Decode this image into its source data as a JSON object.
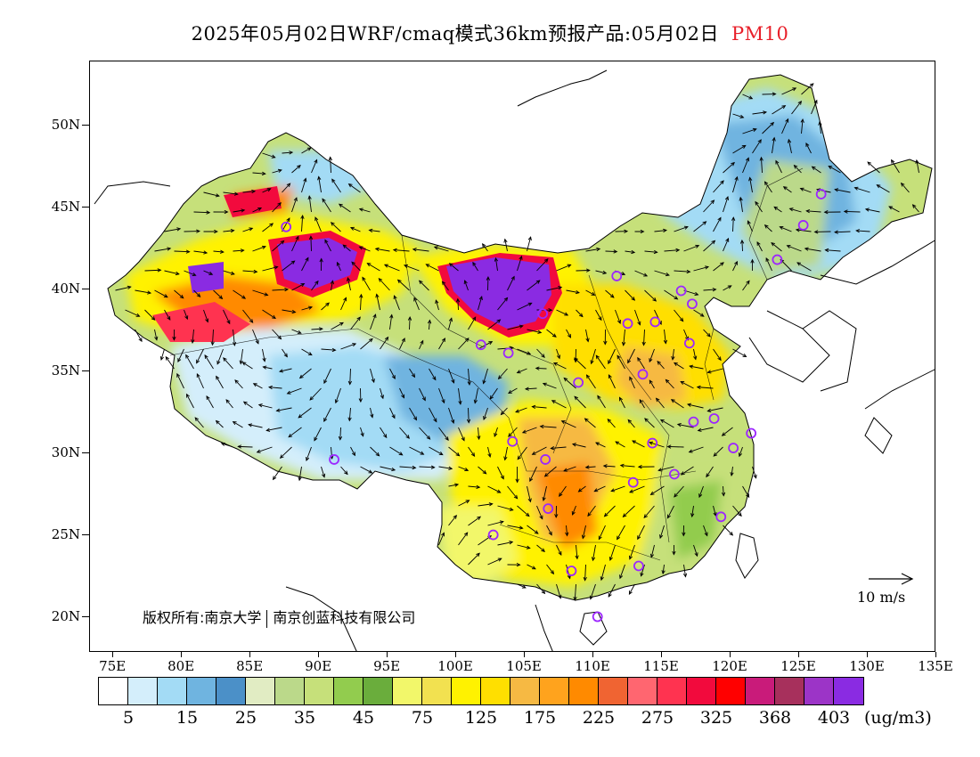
{
  "title": {
    "main": "2025年05月02日WRF/cmaq模式36km预报产品:05月02日",
    "pollutant": "PM10"
  },
  "axes": {
    "lat_labels": [
      "50N",
      "45N",
      "40N",
      "35N",
      "30N",
      "25N",
      "20N"
    ],
    "lon_labels": [
      "75E",
      "80E",
      "85E",
      "90E",
      "95E",
      "100E",
      "105E",
      "110E",
      "115E",
      "120E",
      "125E",
      "130E",
      "135E"
    ],
    "lat_values": [
      50,
      45,
      40,
      35,
      30,
      25,
      20
    ],
    "lon_values": [
      75,
      80,
      85,
      90,
      95,
      100,
      105,
      110,
      115,
      120,
      125,
      130,
      135
    ],
    "lon_range": [
      73.3,
      135
    ],
    "lat_range": [
      17.8,
      53.9
    ]
  },
  "copyright": {
    "prefix": "版权所有:南京大学",
    "company": "南京创蓝科技有限公司"
  },
  "wind_reference": {
    "label": "10 m/s",
    "arrow_icon": "right-arrow-icon"
  },
  "colorbar": {
    "colors": [
      "#ffffff",
      "#d4eefb",
      "#a3dbf5",
      "#6fb4e0",
      "#4b90c8",
      "#e1ecc3",
      "#bbd98a",
      "#c6e07a",
      "#92cc4e",
      "#6aad3c",
      "#f2f76a",
      "#f2e150",
      "#fff200",
      "#ffdf00",
      "#f6b943",
      "#ffa31d",
      "#ff8a00",
      "#f06432",
      "#ff6670",
      "#ff3350",
      "#f20a3d",
      "#ff0000",
      "#c91b7a",
      "#a7305c",
      "#9c34c7",
      "#8a2be2"
    ],
    "labels": [
      "5",
      "15",
      "25",
      "35",
      "45",
      "75",
      "125",
      "175",
      "225",
      "275",
      "325",
      "368",
      "403"
    ],
    "unit": "(ug/m3)"
  },
  "map": {
    "colors": {
      "low_blue": "#a3dbf5",
      "pale_blue": "#d4eefb",
      "mid_blue": "#6fb4e0",
      "green": "#bbd98a",
      "dark_green": "#6aad3c",
      "yellow": "#fff200",
      "light_yellow": "#f2f76a",
      "orange": "#f6b943",
      "dark_orange": "#ff8a00",
      "red": "#f20a3d",
      "purple": "#8a2be2",
      "city_marker": "#9c27ff"
    },
    "cities": [
      {
        "lon": 87.6,
        "lat": 43.8
      },
      {
        "lon": 91.1,
        "lat": 29.6
      },
      {
        "lon": 101.8,
        "lat": 36.6
      },
      {
        "lon": 103.8,
        "lat": 36.1
      },
      {
        "lon": 106.3,
        "lat": 38.5
      },
      {
        "lon": 111.7,
        "lat": 40.8
      },
      {
        "lon": 108.9,
        "lat": 34.3
      },
      {
        "lon": 112.5,
        "lat": 37.9
      },
      {
        "lon": 114.5,
        "lat": 38.0
      },
      {
        "lon": 116.4,
        "lat": 39.9
      },
      {
        "lon": 117.2,
        "lat": 39.1
      },
      {
        "lon": 117.0,
        "lat": 36.7
      },
      {
        "lon": 113.6,
        "lat": 34.8
      },
      {
        "lon": 117.3,
        "lat": 31.9
      },
      {
        "lon": 118.8,
        "lat": 32.1
      },
      {
        "lon": 121.5,
        "lat": 31.2
      },
      {
        "lon": 120.2,
        "lat": 30.3
      },
      {
        "lon": 114.3,
        "lat": 30.6
      },
      {
        "lon": 112.9,
        "lat": 28.2
      },
      {
        "lon": 115.9,
        "lat": 28.7
      },
      {
        "lon": 119.3,
        "lat": 26.1
      },
      {
        "lon": 113.3,
        "lat": 23.1
      },
      {
        "lon": 108.4,
        "lat": 22.8
      },
      {
        "lon": 110.3,
        "lat": 20.0
      },
      {
        "lon": 106.7,
        "lat": 26.6
      },
      {
        "lon": 102.7,
        "lat": 25.0
      },
      {
        "lon": 104.1,
        "lat": 30.7
      },
      {
        "lon": 106.5,
        "lat": 29.6
      },
      {
        "lon": 123.4,
        "lat": 41.8
      },
      {
        "lon": 125.3,
        "lat": 43.9
      },
      {
        "lon": 126.6,
        "lat": 45.8
      }
    ]
  }
}
